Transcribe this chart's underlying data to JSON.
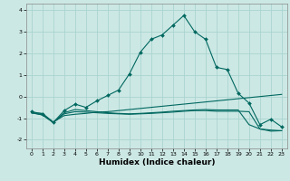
{
  "title": "",
  "xlabel": "Humidex (Indice chaleur)",
  "background_color": "#cce8e4",
  "grid_color": "#aad4d0",
  "line_color": "#006860",
  "x": [
    0,
    1,
    2,
    3,
    4,
    5,
    6,
    7,
    8,
    9,
    10,
    11,
    12,
    13,
    14,
    15,
    16,
    17,
    18,
    19,
    20,
    21,
    22,
    23
  ],
  "line1": [
    -0.7,
    -0.8,
    -1.2,
    -0.65,
    -0.35,
    -0.5,
    -0.2,
    0.05,
    0.3,
    1.05,
    2.05,
    2.65,
    2.85,
    3.3,
    3.75,
    3.0,
    2.65,
    1.35,
    1.25,
    0.15,
    -0.3,
    -1.3,
    -1.05,
    -1.4
  ],
  "line2": [
    -0.75,
    -0.85,
    -1.2,
    -0.75,
    -0.6,
    -0.65,
    -0.7,
    -0.75,
    -0.78,
    -0.8,
    -0.78,
    -0.75,
    -0.72,
    -0.68,
    -0.65,
    -0.62,
    -0.6,
    -0.62,
    -0.62,
    -0.62,
    -1.3,
    -1.5,
    -1.6,
    -1.58
  ],
  "line3": [
    -0.75,
    -0.85,
    -1.2,
    -0.8,
    -0.7,
    -0.72,
    -0.75,
    -0.78,
    -0.8,
    -0.82,
    -0.8,
    -0.78,
    -0.75,
    -0.72,
    -0.68,
    -0.65,
    -0.65,
    -0.68,
    -0.68,
    -0.68,
    -0.7,
    -1.5,
    -1.55,
    -1.58
  ],
  "line4": [
    -0.75,
    -0.78,
    -1.18,
    -0.88,
    -0.82,
    -0.78,
    -0.72,
    -0.7,
    -0.65,
    -0.6,
    -0.55,
    -0.5,
    -0.45,
    -0.4,
    -0.35,
    -0.3,
    -0.25,
    -0.2,
    -0.15,
    -0.1,
    -0.05,
    0.0,
    0.05,
    0.1
  ],
  "ylim": [
    -2.4,
    4.3
  ],
  "xlim": [
    -0.5,
    23.5
  ],
  "yticks": [
    -2,
    -1,
    0,
    1,
    2,
    3,
    4
  ],
  "xticks": [
    0,
    1,
    2,
    3,
    4,
    5,
    6,
    7,
    8,
    9,
    10,
    11,
    12,
    13,
    14,
    15,
    16,
    17,
    18,
    19,
    20,
    21,
    22,
    23
  ]
}
